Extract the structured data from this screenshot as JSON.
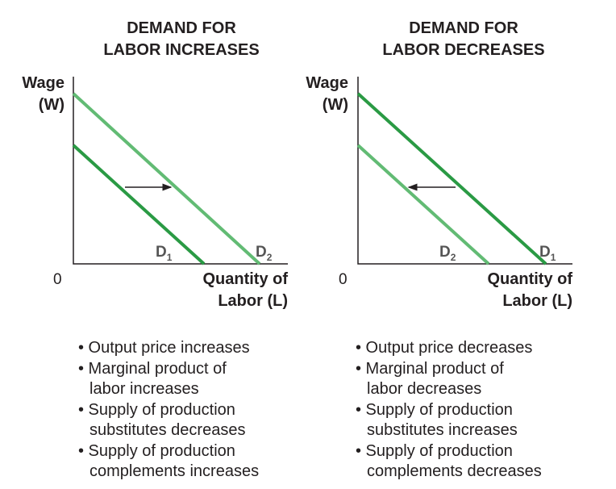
{
  "colors": {
    "dark_green": "#2a9a44",
    "light_green": "#62bb74",
    "axis": "#231f20"
  },
  "left": {
    "title_line1": "DEMAND FOR",
    "title_line2": "LABOR INCREASES",
    "y_label_1": "Wage",
    "y_label_2": "(W)",
    "origin": "0",
    "x_label_1": "Quantity of",
    "x_label_2": "Labor (L)",
    "curve_a": {
      "label": "D",
      "sub": "1"
    },
    "curve_b": {
      "label": "D",
      "sub": "2"
    },
    "shift": "right",
    "bullets": [
      "• Output price increases",
      "• Marginal product of",
      "labor increases",
      "• Supply of production",
      "substitutes decreases",
      "• Supply of production",
      "complements increases"
    ]
  },
  "right": {
    "title_line1": "DEMAND FOR",
    "title_line2": "LABOR DECREASES",
    "y_label_1": "Wage",
    "y_label_2": "(W)",
    "origin": "0",
    "x_label_1": "Quantity of",
    "x_label_2": "Labor (L)",
    "curve_a": {
      "label": "D",
      "sub": "2"
    },
    "curve_b": {
      "label": "D",
      "sub": "1"
    },
    "shift": "left",
    "bullets": [
      "• Output price decreases",
      "• Marginal product of",
      "labor decreases",
      "• Supply of production",
      "substitutes increases",
      "• Supply of production",
      "complements decreases"
    ]
  }
}
